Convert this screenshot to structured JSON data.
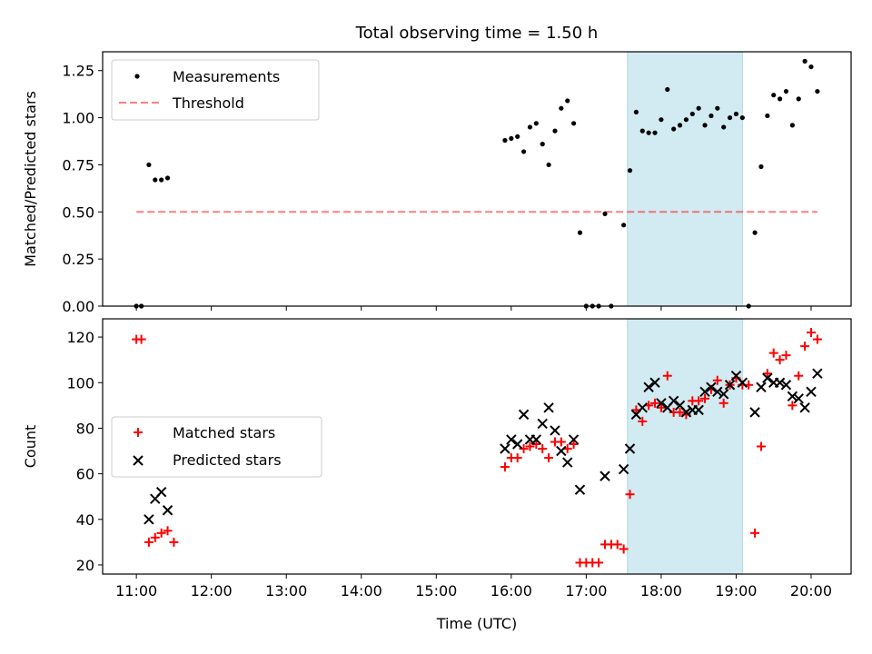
{
  "title": "Total observing time = 1.50 h",
  "chart_data": [
    {
      "type": "scatter",
      "ylabel": "Matched/Predicted stars",
      "xlabel": "",
      "xlim": [
        "10:33",
        "20:32"
      ],
      "ylim": [
        0,
        1.35
      ],
      "yticks": [
        0,
        0.25,
        0.5,
        0.75,
        1.0,
        1.25
      ],
      "yticklabels": [
        "0.00",
        "0.25",
        "0.50",
        "0.75",
        "1.00",
        "1.25"
      ],
      "legend": {
        "position": "top-left",
        "entries": [
          "Measurements",
          "Threshold"
        ]
      },
      "shaded_region": {
        "start": "17:33",
        "end": "19:05",
        "color": "#add8e6"
      },
      "threshold": {
        "name": "Threshold",
        "value": 0.5,
        "x_start": "11:00",
        "x_end": "20:05",
        "color": "#ff0000"
      },
      "series": [
        {
          "name": "Measurements",
          "marker": "dot",
          "color": "#000000",
          "points": [
            [
              "11:00",
              0
            ],
            [
              "11:04",
              0
            ],
            [
              "11:10",
              0.75
            ],
            [
              "11:15",
              0.67
            ],
            [
              "11:20",
              0.67
            ],
            [
              "11:25",
              0.68
            ],
            [
              "15:55",
              0.88
            ],
            [
              "16:00",
              0.89
            ],
            [
              "16:05",
              0.9
            ],
            [
              "16:10",
              0.82
            ],
            [
              "16:15",
              0.95
            ],
            [
              "16:20",
              0.97
            ],
            [
              "16:25",
              0.86
            ],
            [
              "16:30",
              0.75
            ],
            [
              "16:35",
              0.93
            ],
            [
              "16:40",
              1.05
            ],
            [
              "16:45",
              1.09
            ],
            [
              "16:50",
              0.97
            ],
            [
              "16:55",
              0.39
            ],
            [
              "17:00",
              0
            ],
            [
              "17:05",
              0
            ],
            [
              "17:10",
              0
            ],
            [
              "17:15",
              0.49
            ],
            [
              "17:20",
              0
            ],
            [
              "17:30",
              0.43
            ],
            [
              "17:35",
              0.72
            ],
            [
              "17:40",
              1.03
            ],
            [
              "17:45",
              0.93
            ],
            [
              "17:50",
              0.92
            ],
            [
              "17:55",
              0.92
            ],
            [
              "18:00",
              0.99
            ],
            [
              "18:05",
              1.15
            ],
            [
              "18:10",
              0.94
            ],
            [
              "18:15",
              0.96
            ],
            [
              "18:20",
              0.99
            ],
            [
              "18:25",
              1.02
            ],
            [
              "18:30",
              1.05
            ],
            [
              "18:35",
              0.96
            ],
            [
              "18:40",
              1.01
            ],
            [
              "18:45",
              1.05
            ],
            [
              "18:50",
              0.95
            ],
            [
              "18:55",
              1.0
            ],
            [
              "19:00",
              1.02
            ],
            [
              "19:05",
              1.0
            ],
            [
              "19:10",
              0
            ],
            [
              "19:15",
              0.39
            ],
            [
              "19:20",
              0.74
            ],
            [
              "19:25",
              1.01
            ],
            [
              "19:30",
              1.12
            ],
            [
              "19:35",
              1.1
            ],
            [
              "19:40",
              1.14
            ],
            [
              "19:45",
              0.96
            ],
            [
              "19:50",
              1.1
            ],
            [
              "19:55",
              1.3
            ],
            [
              "20:00",
              1.27
            ],
            [
              "20:05",
              1.14
            ]
          ]
        }
      ]
    },
    {
      "type": "scatter",
      "ylabel": "Count",
      "xlabel": "Time (UTC)",
      "xlim": [
        "10:33",
        "20:32"
      ],
      "ylim": [
        16,
        128
      ],
      "yticks": [
        20,
        40,
        60,
        80,
        100,
        120
      ],
      "yticklabels": [
        "20",
        "40",
        "60",
        "80",
        "100",
        "120"
      ],
      "xticks": [
        "11:00",
        "12:00",
        "13:00",
        "14:00",
        "15:00",
        "16:00",
        "17:00",
        "18:00",
        "19:00",
        "20:00"
      ],
      "legend": {
        "position": "center-left",
        "entries": [
          "Matched stars",
          "Predicted stars"
        ]
      },
      "shaded_region": {
        "start": "17:33",
        "end": "19:05",
        "color": "#add8e6"
      },
      "series": [
        {
          "name": "Matched stars",
          "marker": "plus",
          "color": "#ff0000",
          "points": [
            [
              "11:00",
              119
            ],
            [
              "11:04",
              119
            ],
            [
              "11:10",
              30
            ],
            [
              "11:15",
              32
            ],
            [
              "11:20",
              34
            ],
            [
              "11:25",
              35
            ],
            [
              "11:30",
              30
            ],
            [
              "15:55",
              63
            ],
            [
              "16:00",
              67
            ],
            [
              "16:05",
              67
            ],
            [
              "16:10",
              71
            ],
            [
              "16:15",
              72
            ],
            [
              "16:20",
              73
            ],
            [
              "16:25",
              71
            ],
            [
              "16:30",
              67
            ],
            [
              "16:35",
              74
            ],
            [
              "16:40",
              74
            ],
            [
              "16:45",
              71
            ],
            [
              "16:50",
              73
            ],
            [
              "16:55",
              21
            ],
            [
              "17:00",
              21
            ],
            [
              "17:05",
              21
            ],
            [
              "17:10",
              21
            ],
            [
              "17:15",
              29
            ],
            [
              "17:20",
              29
            ],
            [
              "17:25",
              29
            ],
            [
              "17:30",
              27
            ],
            [
              "17:35",
              51
            ],
            [
              "17:40",
              88
            ],
            [
              "17:45",
              83
            ],
            [
              "17:50",
              90
            ],
            [
              "17:55",
              91
            ],
            [
              "18:00",
              89
            ],
            [
              "18:05",
              103
            ],
            [
              "18:10",
              87
            ],
            [
              "18:15",
              87
            ],
            [
              "18:20",
              86
            ],
            [
              "18:25",
              92
            ],
            [
              "18:30",
              92
            ],
            [
              "18:35",
              93
            ],
            [
              "18:40",
              97
            ],
            [
              "18:45",
              101
            ],
            [
              "18:50",
              91
            ],
            [
              "18:55",
              99
            ],
            [
              "19:00",
              102
            ],
            [
              "19:05",
              99
            ],
            [
              "19:10",
              99
            ],
            [
              "19:15",
              34
            ],
            [
              "19:20",
              72
            ],
            [
              "19:25",
              104
            ],
            [
              "19:30",
              113
            ],
            [
              "19:35",
              110
            ],
            [
              "19:40",
              112
            ],
            [
              "19:45",
              90
            ],
            [
              "19:50",
              103
            ],
            [
              "19:55",
              116
            ],
            [
              "20:00",
              122
            ],
            [
              "20:05",
              119
            ]
          ]
        },
        {
          "name": "Predicted stars",
          "marker": "x",
          "color": "#000000",
          "points": [
            [
              "11:10",
              40
            ],
            [
              "11:15",
              49
            ],
            [
              "11:20",
              52
            ],
            [
              "11:25",
              44
            ],
            [
              "15:55",
              71
            ],
            [
              "16:00",
              75
            ],
            [
              "16:05",
              73
            ],
            [
              "16:10",
              86
            ],
            [
              "16:15",
              75
            ],
            [
              "16:20",
              75
            ],
            [
              "16:25",
              82
            ],
            [
              "16:30",
              89
            ],
            [
              "16:35",
              79
            ],
            [
              "16:40",
              70
            ],
            [
              "16:45",
              65
            ],
            [
              "16:50",
              75
            ],
            [
              "16:55",
              53
            ],
            [
              "17:15",
              59
            ],
            [
              "17:30",
              62
            ],
            [
              "17:35",
              71
            ],
            [
              "17:40",
              86
            ],
            [
              "17:45",
              89
            ],
            [
              "17:50",
              98
            ],
            [
              "17:55",
              100
            ],
            [
              "18:00",
              91
            ],
            [
              "18:05",
              89
            ],
            [
              "18:10",
              92
            ],
            [
              "18:15",
              90
            ],
            [
              "18:20",
              87
            ],
            [
              "18:25",
              88
            ],
            [
              "18:30",
              88
            ],
            [
              "18:35",
              96
            ],
            [
              "18:40",
              98
            ],
            [
              "18:45",
              96
            ],
            [
              "18:50",
              95
            ],
            [
              "18:55",
              99
            ],
            [
              "19:00",
              103
            ],
            [
              "19:05",
              100
            ],
            [
              "19:15",
              87
            ],
            [
              "19:20",
              98
            ],
            [
              "19:25",
              102
            ],
            [
              "19:30",
              100
            ],
            [
              "19:35",
              100
            ],
            [
              "19:40",
              99
            ],
            [
              "19:45",
              94
            ],
            [
              "19:50",
              93
            ],
            [
              "19:55",
              89
            ],
            [
              "20:00",
              96
            ],
            [
              "20:05",
              104
            ]
          ]
        }
      ]
    }
  ]
}
